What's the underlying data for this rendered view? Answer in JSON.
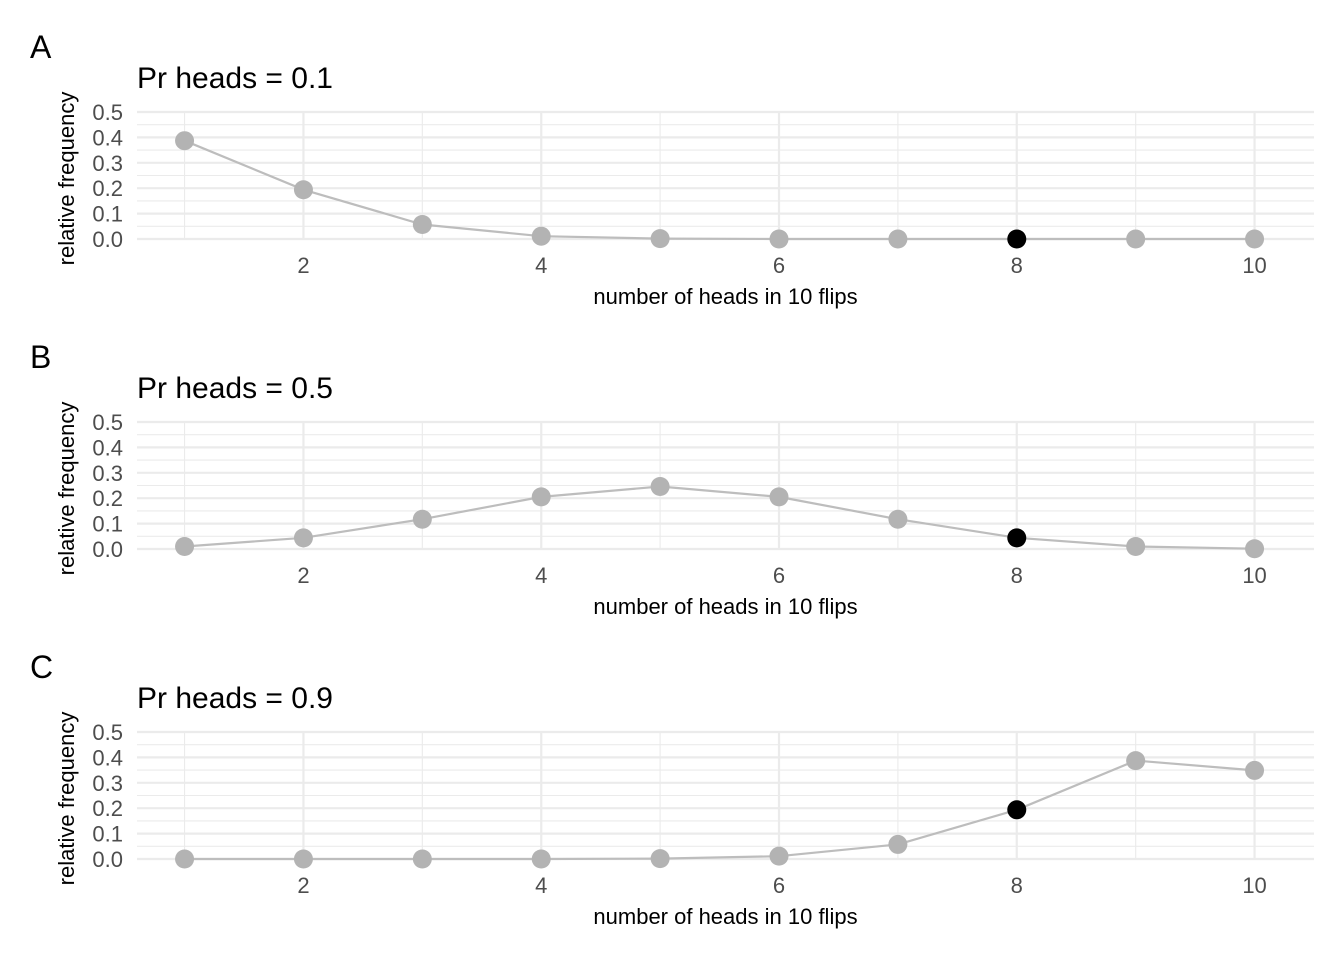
{
  "colors": {
    "point": "#b3b3b3",
    "highlight": "#000000",
    "line": "#bdbdbd",
    "grid": "#ebebeb"
  },
  "chart_data": [
    {
      "type": "line",
      "tag": "A",
      "title": "Pr heads = 0.1",
      "xlabel": "number of heads in 10 flips",
      "ylabel": "relative frequency",
      "x": [
        1,
        2,
        3,
        4,
        5,
        6,
        7,
        8,
        9,
        10
      ],
      "values": [
        0.387,
        0.194,
        0.057,
        0.011,
        0.0015,
        0.0001,
        0.0,
        0.0,
        0.0,
        0.0
      ],
      "highlight_x": 8,
      "xlim": [
        0.6,
        10.5
      ],
      "ylim": [
        0,
        0.5
      ],
      "xticks": [
        2,
        4,
        6,
        8,
        10
      ],
      "xtick_labels": [
        "2",
        "4",
        "6",
        "8",
        "10"
      ],
      "yticks": [
        0,
        0.1,
        0.2,
        0.3,
        0.4,
        0.5
      ],
      "ytick_labels": [
        "0.0",
        "0.1",
        "0.2",
        "0.3",
        "0.4",
        "0.5"
      ],
      "grid": true
    },
    {
      "type": "line",
      "tag": "B",
      "title": "Pr heads = 0.5",
      "xlabel": "number of heads in 10 flips",
      "ylabel": "relative frequency",
      "x": [
        1,
        2,
        3,
        4,
        5,
        6,
        7,
        8,
        9,
        10
      ],
      "values": [
        0.0098,
        0.0439,
        0.1172,
        0.2051,
        0.2461,
        0.2051,
        0.1172,
        0.0439,
        0.0098,
        0.001
      ],
      "highlight_x": 8,
      "xlim": [
        0.6,
        10.5
      ],
      "ylim": [
        0,
        0.5
      ],
      "xticks": [
        2,
        4,
        6,
        8,
        10
      ],
      "xtick_labels": [
        "2",
        "4",
        "6",
        "8",
        "10"
      ],
      "yticks": [
        0,
        0.1,
        0.2,
        0.3,
        0.4,
        0.5
      ],
      "ytick_labels": [
        "0.0",
        "0.1",
        "0.2",
        "0.3",
        "0.4",
        "0.5"
      ],
      "grid": true
    },
    {
      "type": "line",
      "tag": "C",
      "title": "Pr heads = 0.9",
      "xlabel": "number of heads in 10 flips",
      "ylabel": "relative frequency",
      "x": [
        1,
        2,
        3,
        4,
        5,
        6,
        7,
        8,
        9,
        10
      ],
      "values": [
        0.0,
        0.0,
        0.0,
        0.0001,
        0.0015,
        0.0112,
        0.0574,
        0.1937,
        0.3874,
        0.3487
      ],
      "highlight_x": 8,
      "xlim": [
        0.6,
        10.5
      ],
      "ylim": [
        0,
        0.5
      ],
      "xticks": [
        2,
        4,
        6,
        8,
        10
      ],
      "xtick_labels": [
        "2",
        "4",
        "6",
        "8",
        "10"
      ],
      "yticks": [
        0,
        0.1,
        0.2,
        0.3,
        0.4,
        0.5
      ],
      "ytick_labels": [
        "0.0",
        "0.1",
        "0.2",
        "0.3",
        "0.4",
        "0.5"
      ],
      "grid": true
    }
  ]
}
